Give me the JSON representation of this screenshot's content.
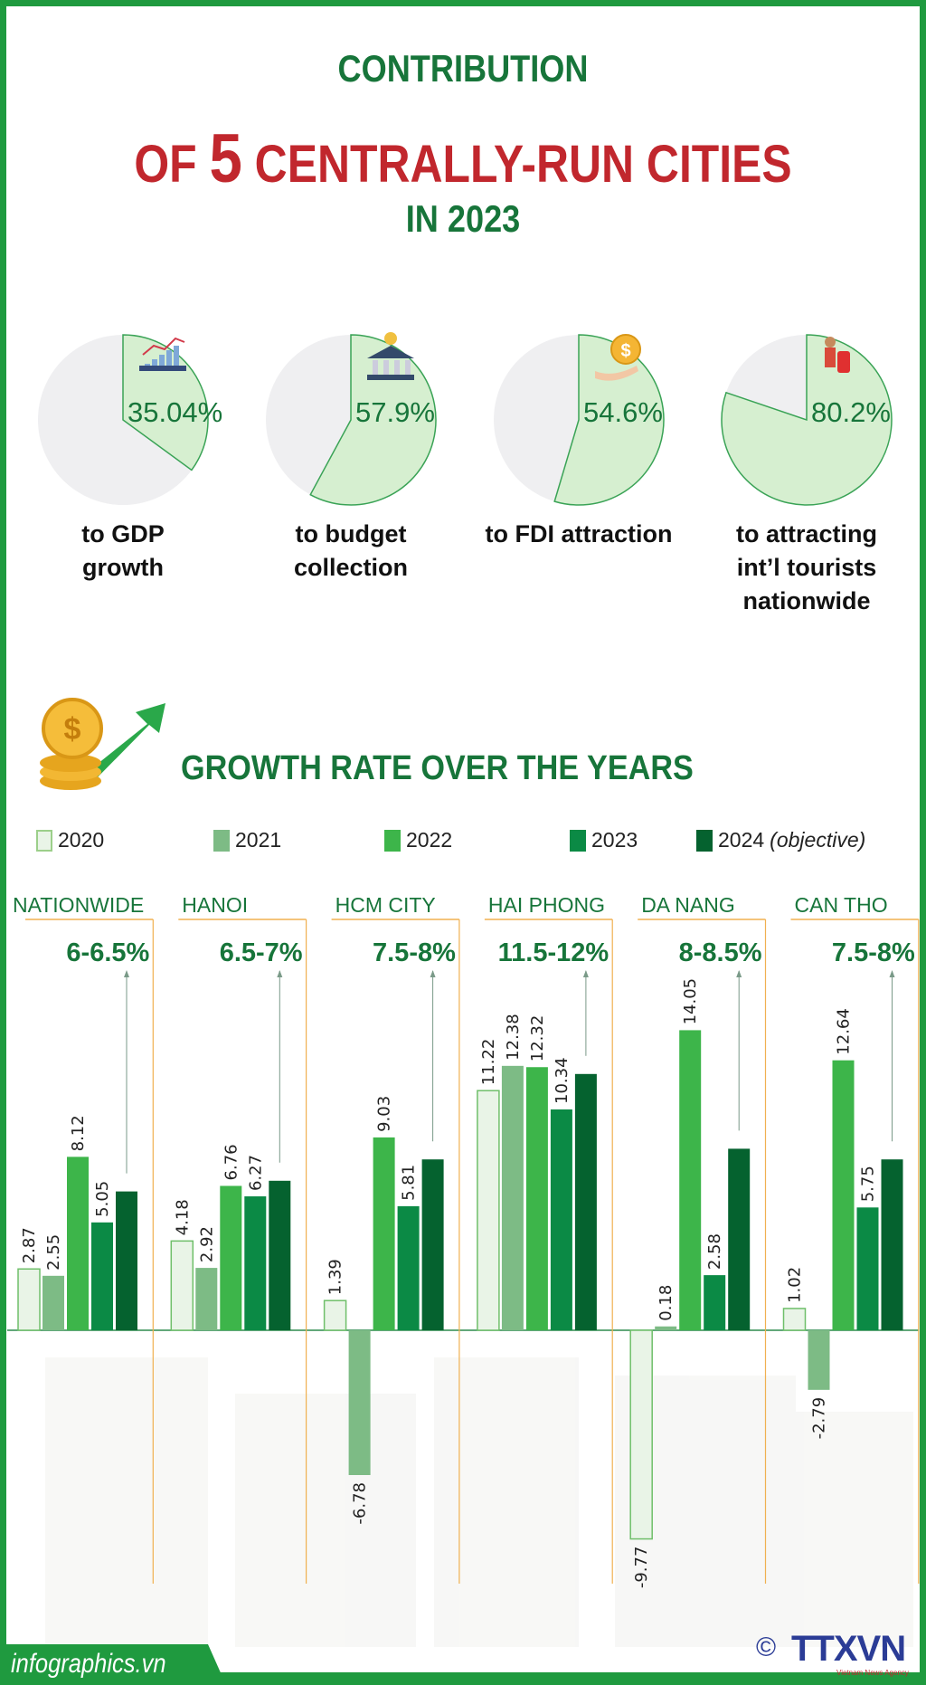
{
  "title": {
    "line1": "CONTRIBUTION",
    "line2_pre": "OF ",
    "line2_num": "5",
    "line2_post": " CENTRALLY-RUN CITIES",
    "line3": "IN 2023"
  },
  "contributions": [
    {
      "value": 35.04,
      "label": "35.04%",
      "caption": [
        "to GDP",
        "growth"
      ],
      "icon": "gdp-chart-icon"
    },
    {
      "value": 57.9,
      "label": "57.9%",
      "caption": [
        "to budget",
        "collection"
      ],
      "icon": "bank-coin-icon"
    },
    {
      "value": 54.6,
      "label": "54.6%",
      "caption": [
        "to FDI attraction"
      ],
      "icon": "dollar-hand-icon"
    },
    {
      "value": 80.2,
      "label": "80.2%",
      "caption": [
        "to attracting",
        "int’l tourists",
        "nationwide"
      ],
      "icon": "tourist-luggage-icon"
    }
  ],
  "colors": {
    "title_green": "#17753a",
    "title_red": "#c1272d",
    "pie_slice": "#d6efd0",
    "pie_rest": "#efeff1",
    "divider": "#f0b050"
  },
  "chart_data": {
    "type": "bar",
    "title": "GROWTH RATE OVER THE YEARS",
    "unit": "%",
    "categories": [
      "NATIONWIDE",
      "HANOI",
      "HCM CITY",
      "HAI PHONG",
      "DA NANG",
      "CAN THO"
    ],
    "targets": [
      "6-6.5%",
      "6.5-7%",
      "7.5-8%",
      "11.5-12%",
      "8-8.5%",
      "7.5-8%"
    ],
    "series": [
      {
        "name": "2020",
        "color": "#e9f4e7",
        "values": [
          2.87,
          4.18,
          1.39,
          11.22,
          -9.77,
          1.02
        ],
        "labels": [
          "2.87",
          "4.18",
          "1.39",
          "11.22",
          "-9.77",
          "1.02"
        ]
      },
      {
        "name": "2021",
        "color": "#7dbb85",
        "values": [
          2.55,
          2.92,
          -6.78,
          12.38,
          0.18,
          -2.79
        ],
        "labels": [
          "2.55",
          "2.92",
          "-6.78",
          "12.38",
          "0.18",
          "-2.79"
        ]
      },
      {
        "name": "2022",
        "color": "#3db54a",
        "values": [
          8.12,
          6.76,
          9.03,
          12.32,
          14.05,
          12.64
        ],
        "labels": [
          "8.12",
          "6.76",
          "9.03",
          "12.32",
          "14.05",
          "12.64"
        ]
      },
      {
        "name": "2023",
        "color": "#0b8a45",
        "values": [
          5.05,
          6.27,
          5.81,
          10.34,
          2.58,
          5.75
        ],
        "labels": [
          "5.05",
          "6.27",
          "5.81",
          "10.34",
          "2.58",
          "5.75"
        ]
      },
      {
        "name": "2024",
        "name_note": "(objective)",
        "color": "#05622f",
        "values": [
          6.5,
          7,
          8,
          12,
          8.5,
          8
        ]
      }
    ],
    "ylim": [
      -10,
      15
    ],
    "grid": false,
    "legend": "top"
  },
  "footer": {
    "site": "infographics.vn",
    "logo": "TTXVN",
    "logo_sub": "Vietnam News Agency",
    "copyright": "©"
  }
}
